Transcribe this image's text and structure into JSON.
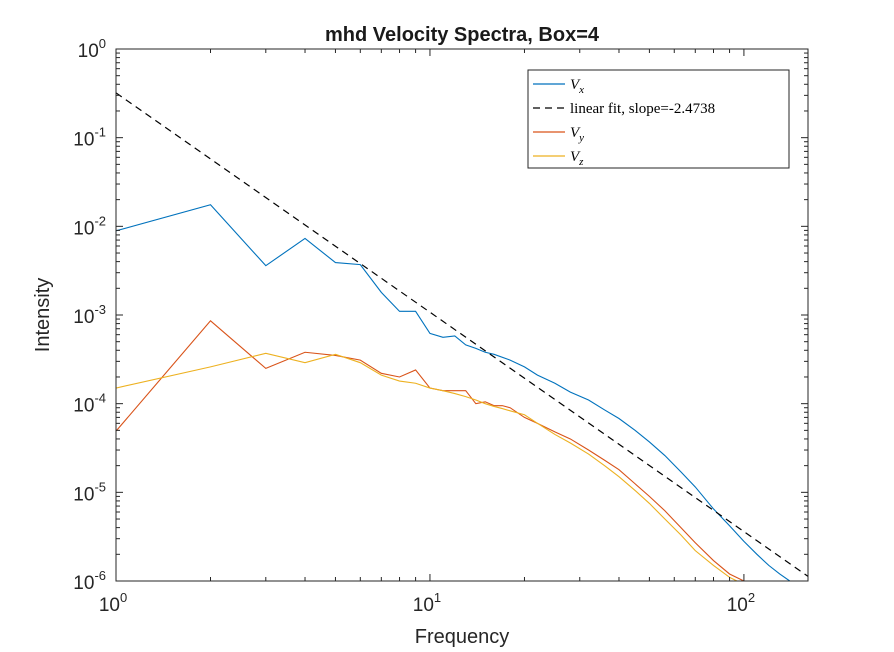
{
  "chart_data": {
    "type": "line",
    "title": "mhd Velocity Spectra, Box=4",
    "xlabel": "Frequency",
    "ylabel": "Intensity",
    "xscale": "log",
    "yscale": "log",
    "xlim": [
      1,
      160
    ],
    "ylim": [
      1e-06,
      1
    ],
    "grid": false,
    "legend_position": "top-right",
    "x_ticks": [
      {
        "value": 1,
        "base": "10",
        "exp": "0"
      },
      {
        "value": 10,
        "base": "10",
        "exp": "1"
      },
      {
        "value": 100,
        "base": "10",
        "exp": "2"
      }
    ],
    "y_ticks": [
      {
        "value": 1e-06,
        "base": "10",
        "exp": "-6"
      },
      {
        "value": 1e-05,
        "base": "10",
        "exp": "-5"
      },
      {
        "value": 0.0001,
        "base": "10",
        "exp": "-4"
      },
      {
        "value": 0.001,
        "base": "10",
        "exp": "-3"
      },
      {
        "value": 0.01,
        "base": "10",
        "exp": "-2"
      },
      {
        "value": 0.1,
        "base": "10",
        "exp": "-1"
      },
      {
        "value": 1,
        "base": "10",
        "exp": "0"
      }
    ],
    "series": [
      {
        "name": "V",
        "sub": "x",
        "color": "#0072BD",
        "dash": false,
        "x": [
          1,
          2,
          3,
          4,
          5,
          6,
          7,
          8,
          9,
          10,
          11,
          12,
          13,
          14,
          15,
          16,
          18,
          20,
          22,
          25,
          28,
          32,
          36,
          40,
          45,
          50,
          56,
          63,
          70,
          80,
          90,
          100,
          110,
          120,
          130,
          140,
          150
        ],
        "y": [
          0.0089,
          0.0175,
          0.0036,
          0.0073,
          0.0039,
          0.0037,
          0.0018,
          0.0011,
          0.0011,
          0.00062,
          0.00056,
          0.00058,
          0.00046,
          0.00042,
          0.00038,
          0.00036,
          0.00031,
          0.00026,
          0.00021,
          0.00017,
          0.000135,
          0.00011,
          8.5e-05,
          6.8e-05,
          5e-05,
          3.7e-05,
          2.6e-05,
          1.7e-05,
          1.15e-05,
          6.5e-06,
          4.2e-06,
          2.8e-06,
          2e-06,
          1.5e-06,
          1.2e-06,
          1e-06,
          1e-06
        ]
      },
      {
        "name": "linear fit, slope=-2.4738",
        "color": "#000000",
        "dash": true,
        "slope": -2.4738,
        "intercept_at_1": 0.32,
        "x": [
          1,
          160
        ]
      },
      {
        "name": "V",
        "sub": "y",
        "color": "#D95319",
        "dash": false,
        "x": [
          1,
          2,
          3,
          4,
          5,
          6,
          7,
          8,
          9,
          10,
          11,
          12,
          13,
          14,
          15,
          16,
          17,
          18,
          20,
          22,
          25,
          28,
          32,
          36,
          40,
          45,
          50,
          56,
          63,
          70,
          80,
          90,
          100
        ],
        "y": [
          4.9e-05,
          0.00086,
          0.00025,
          0.00038,
          0.00035,
          0.00031,
          0.00022,
          0.0002,
          0.00024,
          0.00015,
          0.00014,
          0.00014,
          0.00014,
          0.0001,
          0.000105,
          9.5e-05,
          9.5e-05,
          9e-05,
          7e-05,
          6e-05,
          4.8e-05,
          4e-05,
          3e-05,
          2.3e-05,
          1.8e-05,
          1.25e-05,
          9e-06,
          6.2e-06,
          4e-06,
          2.7e-06,
          1.7e-06,
          1.2e-06,
          1e-06
        ]
      },
      {
        "name": "V",
        "sub": "z",
        "color": "#EDB120",
        "dash": false,
        "x": [
          1,
          2,
          3,
          4,
          5,
          6,
          7,
          8,
          9,
          10,
          11,
          12,
          13,
          14,
          15,
          16,
          17,
          18,
          20,
          22,
          25,
          28,
          32,
          36,
          40,
          45,
          50,
          56,
          63,
          70,
          80,
          90,
          95
        ],
        "y": [
          0.00015,
          0.00026,
          0.00037,
          0.00029,
          0.00036,
          0.00029,
          0.00021,
          0.00018,
          0.00017,
          0.00015,
          0.00014,
          0.00013,
          0.00012,
          0.00011,
          0.0001,
          9.3e-05,
          8.8e-05,
          8.3e-05,
          7.5e-05,
          6e-05,
          4.5e-05,
          3.6e-05,
          2.7e-05,
          2e-05,
          1.5e-05,
          1.05e-05,
          7.5e-06,
          5e-06,
          3.3e-06,
          2.2e-06,
          1.5e-06,
          1.1e-06,
          1e-06
        ]
      }
    ]
  }
}
